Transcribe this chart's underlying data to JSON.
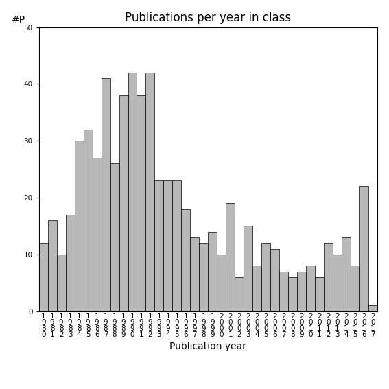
{
  "years": [
    1980,
    1981,
    1982,
    1983,
    1984,
    1985,
    1986,
    1987,
    1988,
    1989,
    1990,
    1991,
    1992,
    1993,
    1994,
    1995,
    1996,
    1997,
    1998,
    1999,
    2000,
    2001,
    2002,
    2003,
    2004,
    2005,
    2006,
    2007,
    2008,
    2009,
    2010,
    2011,
    2012,
    2013,
    2014,
    2015,
    2016,
    2017
  ],
  "values": [
    12,
    16,
    10,
    17,
    30,
    32,
    27,
    41,
    26,
    38,
    42,
    38,
    42,
    23,
    23,
    23,
    18,
    13,
    12,
    14,
    10,
    19,
    6,
    15,
    8,
    12,
    11,
    7,
    6,
    7,
    8,
    6,
    12,
    10,
    13,
    8,
    22,
    1
  ],
  "bar_color": "#b8b8b8",
  "bar_edgecolor": "#000000",
  "title": "Publications per year in class",
  "xlabel": "Publication year",
  "ylabel_annotation": "#P",
  "ylim": [
    0,
    50
  ],
  "yticks": [
    0,
    10,
    20,
    30,
    40,
    50
  ],
  "background_color": "#ffffff",
  "title_fontsize": 12,
  "label_fontsize": 10,
  "tick_fontsize": 7.5
}
